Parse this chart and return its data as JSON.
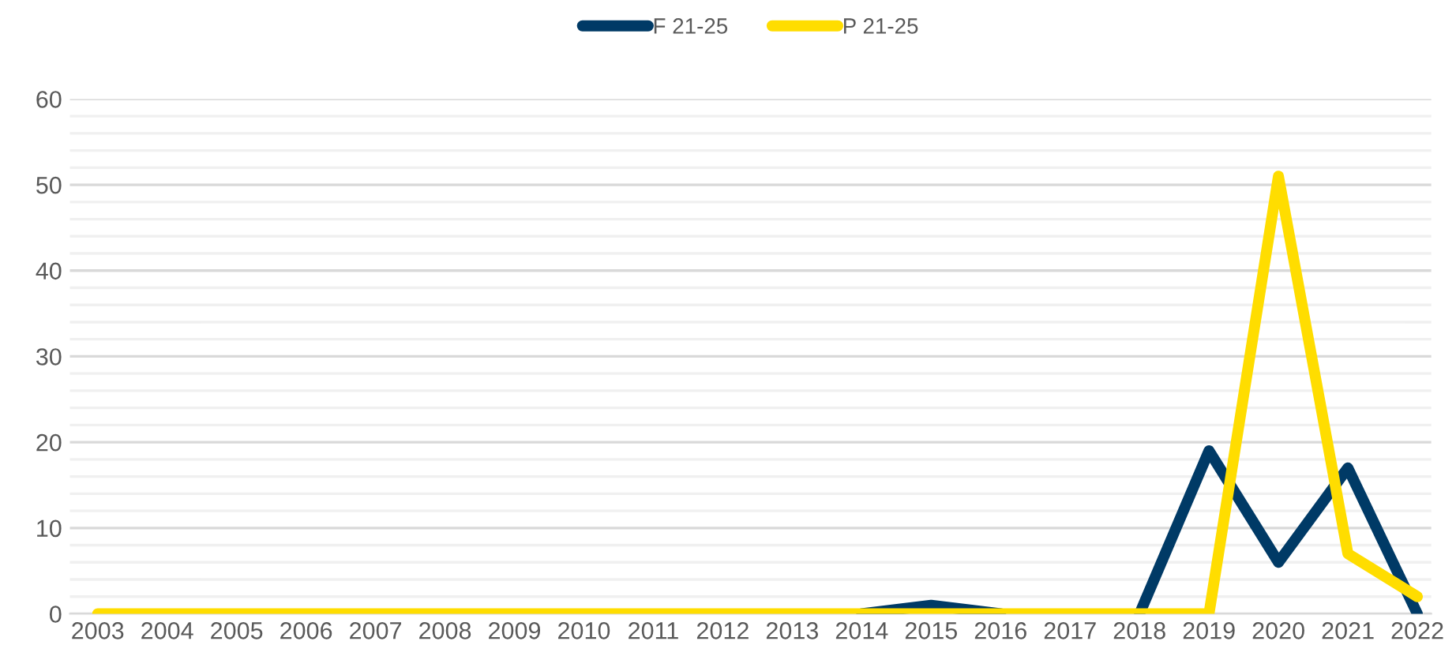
{
  "chart_data": {
    "type": "line",
    "categories": [
      "2003",
      "2004",
      "2005",
      "2006",
      "2007",
      "2008",
      "2009",
      "2010",
      "2011",
      "2012",
      "2013",
      "2014",
      "2015",
      "2016",
      "2017",
      "2018",
      "2019",
      "2020",
      "2021",
      "2022"
    ],
    "series": [
      {
        "name": "F 21-25",
        "color": "#003a66",
        "values": [
          null,
          null,
          null,
          null,
          null,
          null,
          null,
          null,
          null,
          null,
          null,
          0,
          1,
          0,
          null,
          0,
          19,
          6,
          17,
          0
        ]
      },
      {
        "name": "P 21-25",
        "color": "#ffdd00",
        "values": [
          0,
          0,
          0,
          0,
          0,
          0,
          0,
          0,
          0,
          0,
          0,
          0,
          0,
          0,
          0,
          0,
          0,
          51,
          7,
          2
        ]
      }
    ],
    "ylim": [
      0,
      60
    ],
    "yticks": [
      0,
      {
        "value": 2,
        "label": null
      },
      {
        "value": 4,
        "label": null
      },
      {
        "value": 6,
        "label": null
      },
      {
        "value": 8,
        "label": null
      },
      10,
      {
        "value": 12,
        "label": null
      },
      {
        "value": 14,
        "label": null
      },
      {
        "value": 16,
        "label": null
      },
      {
        "value": 18,
        "label": null
      },
      20,
      {
        "value": 22,
        "label": null
      },
      {
        "value": 24,
        "label": null
      },
      {
        "value": 26,
        "label": null
      },
      {
        "value": 28,
        "label": null
      },
      30,
      {
        "value": 32,
        "label": null
      },
      {
        "value": 34,
        "label": null
      },
      {
        "value": 36,
        "label": null
      },
      {
        "value": 38,
        "label": null
      },
      40,
      {
        "value": 42,
        "label": null
      },
      {
        "value": 44,
        "label": null
      },
      {
        "value": 46,
        "label": null
      },
      {
        "value": 48,
        "label": null
      },
      50,
      {
        "value": 52,
        "label": null
      },
      {
        "value": 54,
        "label": null
      },
      {
        "value": 56,
        "label": null
      },
      {
        "value": 58,
        "label": null
      },
      60
    ],
    "grid": "y",
    "legend": "top",
    "marker": "none",
    "line_style": "solid"
  }
}
